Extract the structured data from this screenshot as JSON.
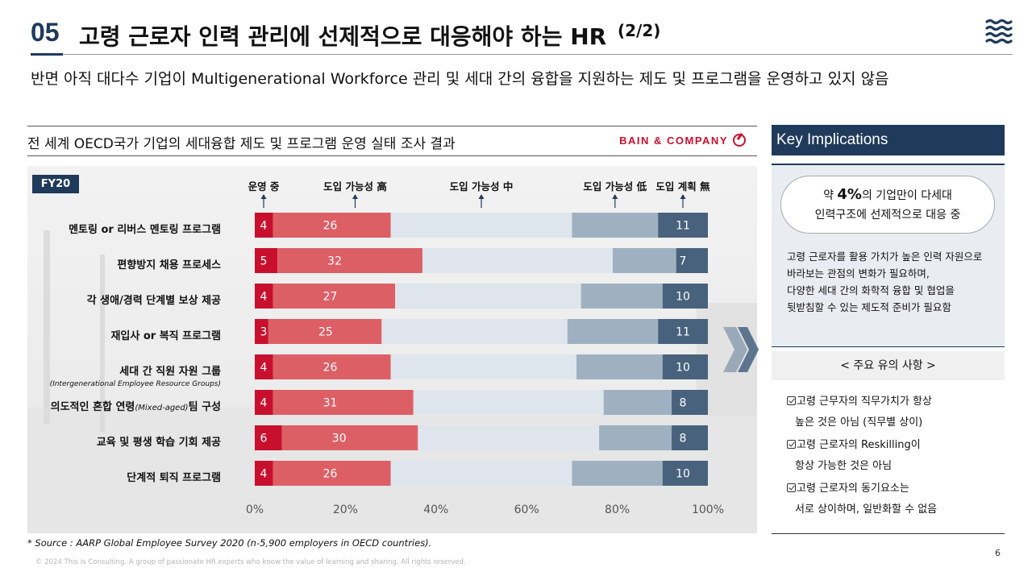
{
  "header": {
    "slide_number": "05",
    "title": "고령 근로자 인력 관리에 선제적으로 대응해야 하는 HR",
    "title_suffix": "(2/2)",
    "subtitle": "반면 아직 대다수 기업이 Multigenerational Workforce 관리 및 세대 간의 융합을 지원하는 제도 및 프로그램을 운영하고 있지 않음",
    "logo_icon": "wave-logo-icon"
  },
  "chart_section": {
    "title": "전 세계 OECD국가 기업의 세대융합 제도 및 프로그램 운영 실태 조사 결과",
    "brand": "BAIN & COMPANY",
    "badge": "FY20"
  },
  "chart_data": {
    "type": "bar",
    "orientation": "horizontal-stacked",
    "categories": [
      "멘토링 or 리버스 멘토링 프로그램",
      "편향방지 채용 프로세스",
      "각 생애/경력 단계별 보상 제공",
      "재입사 or 복직 프로그램",
      "세대 간 직원 자원 그룹",
      "의도적인 혼합 연령",
      "교육 및 평생 학습 기회 제공",
      "단계적 퇴직 프로그램"
    ],
    "category_notes": {
      "row4_sub": "(Intergenerational Employee Resource Groups)",
      "row5_inline": "(Mixed-aged)",
      "row5_tail": "팀 구성"
    },
    "series": [
      {
        "name": "운영 중",
        "color": "#c8102e",
        "values": [
          4,
          5,
          4,
          3,
          4,
          4,
          6,
          4
        ]
      },
      {
        "name": "도입 가능성 高",
        "color": "#dd5f66",
        "values": [
          26,
          32,
          27,
          25,
          26,
          31,
          30,
          26
        ]
      },
      {
        "name": "도입 가능성 中",
        "color": "#dfe5ec",
        "values": [
          40,
          42,
          41,
          41,
          41,
          42,
          40,
          40
        ]
      },
      {
        "name": "도입 가능성 低",
        "color": "#9fb1c1",
        "values": [
          19,
          14,
          18,
          20,
          19,
          15,
          16,
          20
        ]
      },
      {
        "name": "도입 계획 無",
        "color": "#48627d",
        "values": [
          11,
          7,
          10,
          11,
          10,
          8,
          8,
          10
        ]
      }
    ],
    "labeled_series": [
      0,
      1,
      4
    ],
    "xlim": [
      0,
      100
    ],
    "xticks": [
      "0%",
      "20%",
      "40%",
      "60%",
      "80%",
      "100%"
    ],
    "legend_placement": "top"
  },
  "implications": {
    "heading": "Key Implications",
    "highlight_pre": "약 ",
    "highlight_value": "4%",
    "highlight_post": "의 기업만이 다세대",
    "highlight_line2": "인력구조에 선제적으로 대응 중",
    "body_lines": [
      "고령 근로자를 활용 가치가 높은 인력 자원으로",
      "바라보는 관점의 변화가 필요하며,",
      "다양한 세대 간의 화학적 융합 및 협업을",
      "뒷받침할 수 있는 제도적 준비가 필요함"
    ]
  },
  "cautions": {
    "heading": "< 주요 유의 사항 >",
    "items": [
      {
        "line1": "고령 근무자의 직무가치가 항상",
        "line2": "높은 것은 아님 (직무별 상이)"
      },
      {
        "line1": "고령 근로자의 Reskilling이",
        "line2": "항상 가능한 것은 아님"
      },
      {
        "line1": "고령 근로자의 동기요소는",
        "line2": "서로 상이하며, 일반화할 수 없음"
      }
    ]
  },
  "footer": {
    "source": "* Source : AARP Global Employee Survey 2020 (n-5,900 employers in OECD countries).",
    "copyright": "© 2024 This Is Consulting. A group of passionate HR experts who know the value of learning and sharing. All rights reserved.",
    "page": "6"
  }
}
